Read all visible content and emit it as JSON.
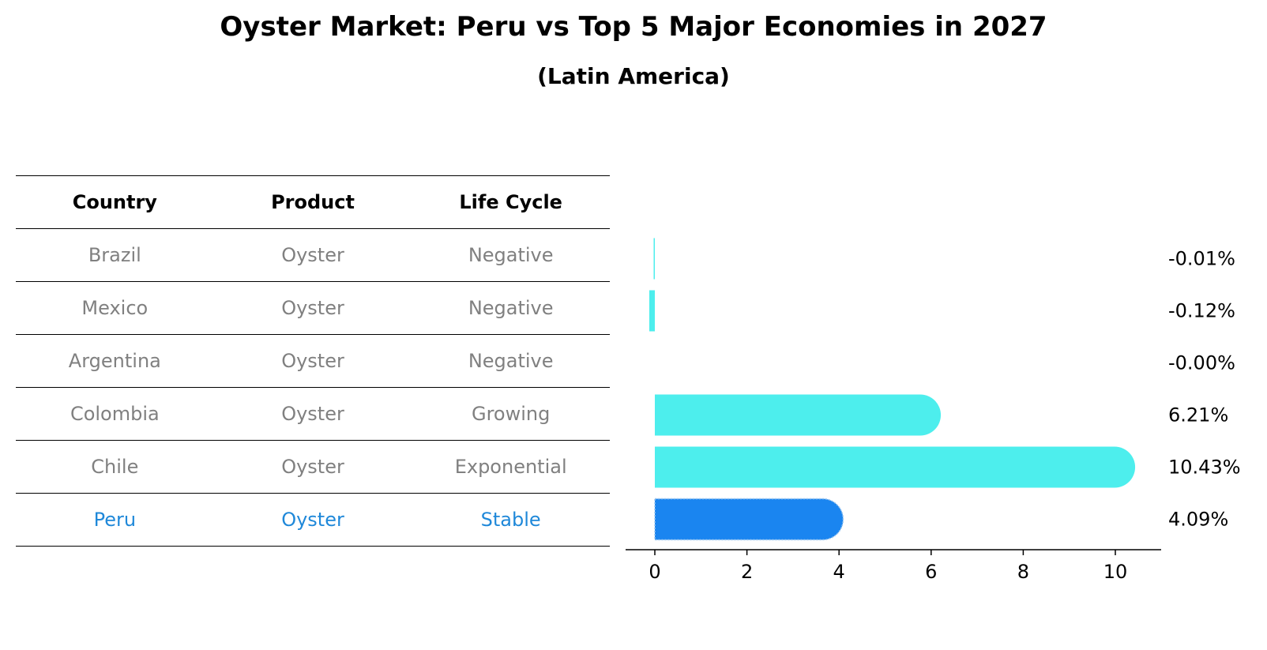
{
  "title": "Oyster Market: Peru vs Top 5 Major Economies in 2027",
  "subtitle": "(Latin America)",
  "table": {
    "headers": [
      "Country",
      "Product",
      "Life Cycle"
    ],
    "rows": [
      {
        "country": "Brazil",
        "product": "Oyster",
        "life_cycle": "Negative"
      },
      {
        "country": "Mexico",
        "product": "Oyster",
        "life_cycle": "Negative"
      },
      {
        "country": "Argentina",
        "product": "Oyster",
        "life_cycle": "Negative"
      },
      {
        "country": "Colombia",
        "product": "Oyster",
        "life_cycle": "Growing"
      },
      {
        "country": "Chile",
        "product": "Oyster",
        "life_cycle": "Exponential"
      },
      {
        "country": "Peru",
        "product": "Oyster",
        "life_cycle": "Stable"
      }
    ]
  },
  "chart_data": {
    "type": "bar",
    "orientation": "horizontal",
    "categories": [
      "Brazil",
      "Mexico",
      "Argentina",
      "Colombia",
      "Chile",
      "Peru"
    ],
    "values": [
      -0.01,
      -0.12,
      -0.0,
      6.21,
      10.43,
      4.09
    ],
    "value_labels": [
      "-0.01%",
      "-0.12%",
      "-0.00%",
      "6.21%",
      "10.43%",
      "4.09%"
    ],
    "highlight": "Peru",
    "xticks": [
      0,
      2,
      4,
      6,
      8,
      10
    ],
    "xlim": [
      -0.66,
      11
    ],
    "colors": {
      "default": "#4deeed",
      "highlight": "#1a85f0",
      "text": "#000000",
      "muted": "#808080",
      "highlight_text": "#1f88d9"
    }
  }
}
